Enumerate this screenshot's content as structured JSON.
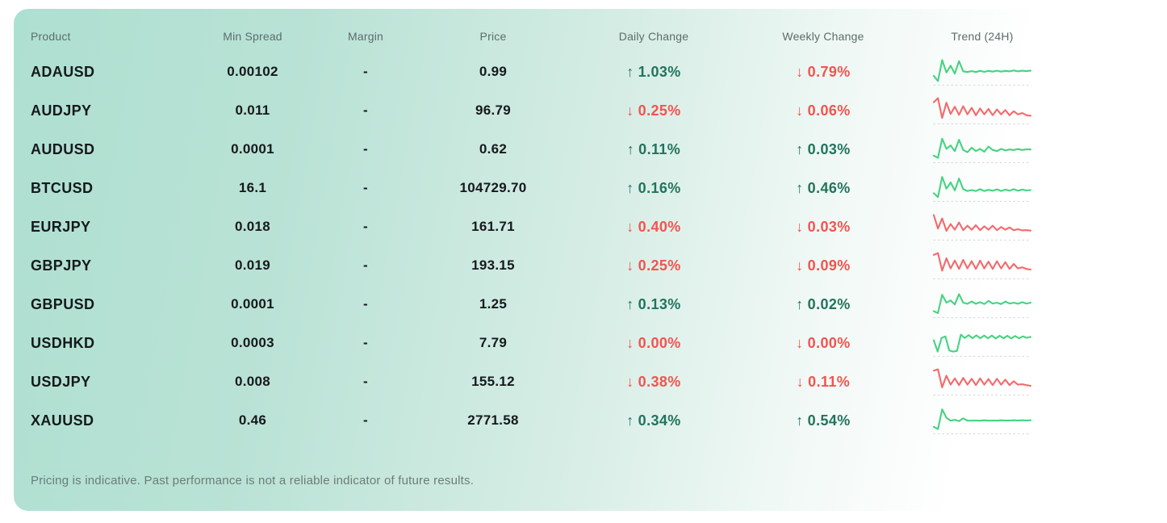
{
  "table": {
    "headers": {
      "product": "Product",
      "min_spread": "Min Spread",
      "margin": "Margin",
      "price": "Price",
      "daily_change": "Daily Change",
      "weekly_change": "Weekly Change",
      "trend": "Trend (24H)"
    },
    "rows": [
      {
        "product": "ADAUSD",
        "min_spread": "0.00102",
        "margin": "-",
        "price": "0.99",
        "daily_change": {
          "direction": "up",
          "value": "1.03%"
        },
        "weekly_change": {
          "direction": "down",
          "value": "0.79%"
        },
        "trend": {
          "color": "green",
          "points": [
            0.25,
            0.02,
            0.95,
            0.4,
            0.7,
            0.35,
            0.9,
            0.45,
            0.42,
            0.46,
            0.42,
            0.47,
            0.43,
            0.47,
            0.44,
            0.48,
            0.44,
            0.47,
            0.45,
            0.49,
            0.45,
            0.48,
            0.46,
            0.48
          ]
        }
      },
      {
        "product": "AUDJPY",
        "min_spread": "0.011",
        "margin": "-",
        "price": "96.79",
        "daily_change": {
          "direction": "down",
          "value": "0.25%"
        },
        "weekly_change": {
          "direction": "down",
          "value": "0.06%"
        },
        "trend": {
          "color": "red",
          "points": [
            0.8,
            0.98,
            0.1,
            0.78,
            0.28,
            0.6,
            0.24,
            0.62,
            0.26,
            0.55,
            0.22,
            0.52,
            0.26,
            0.5,
            0.22,
            0.48,
            0.26,
            0.45,
            0.22,
            0.4,
            0.26,
            0.32,
            0.22,
            0.2
          ]
        }
      },
      {
        "product": "AUDUSD",
        "min_spread": "0.0001",
        "margin": "-",
        "price": "0.62",
        "daily_change": {
          "direction": "up",
          "value": "0.11%"
        },
        "weekly_change": {
          "direction": "up",
          "value": "0.03%"
        },
        "trend": {
          "color": "green",
          "points": [
            0.15,
            0.05,
            0.9,
            0.45,
            0.6,
            0.35,
            0.85,
            0.4,
            0.3,
            0.5,
            0.35,
            0.45,
            0.32,
            0.55,
            0.4,
            0.35,
            0.45,
            0.38,
            0.42,
            0.4,
            0.44,
            0.4,
            0.43,
            0.42
          ]
        }
      },
      {
        "product": "BTCUSD",
        "min_spread": "16.1",
        "margin": "-",
        "price": "104729.70",
        "daily_change": {
          "direction": "up",
          "value": "0.16%"
        },
        "weekly_change": {
          "direction": "up",
          "value": "0.46%"
        },
        "trend": {
          "color": "green",
          "points": [
            0.2,
            0.03,
            0.92,
            0.4,
            0.68,
            0.32,
            0.85,
            0.38,
            0.3,
            0.34,
            0.3,
            0.38,
            0.3,
            0.35,
            0.31,
            0.37,
            0.3,
            0.36,
            0.31,
            0.38,
            0.31,
            0.36,
            0.32,
            0.34
          ]
        }
      },
      {
        "product": "EURJPY",
        "min_spread": "0.018",
        "margin": "-",
        "price": "161.71",
        "daily_change": {
          "direction": "down",
          "value": "0.40%"
        },
        "weekly_change": {
          "direction": "down",
          "value": "0.03%"
        },
        "trend": {
          "color": "red",
          "points": [
            0.95,
            0.35,
            0.8,
            0.25,
            0.55,
            0.3,
            0.62,
            0.28,
            0.48,
            0.3,
            0.5,
            0.28,
            0.45,
            0.3,
            0.48,
            0.28,
            0.42,
            0.3,
            0.4,
            0.28,
            0.32,
            0.27,
            0.28,
            0.26
          ]
        }
      },
      {
        "product": "GBPJPY",
        "min_spread": "0.019",
        "margin": "-",
        "price": "193.15",
        "daily_change": {
          "direction": "down",
          "value": "0.25%"
        },
        "weekly_change": {
          "direction": "down",
          "value": "0.09%"
        },
        "trend": {
          "color": "red",
          "points": [
            0.9,
            0.98,
            0.2,
            0.75,
            0.3,
            0.65,
            0.28,
            0.68,
            0.3,
            0.62,
            0.28,
            0.65,
            0.3,
            0.6,
            0.28,
            0.62,
            0.3,
            0.58,
            0.28,
            0.5,
            0.3,
            0.35,
            0.28,
            0.25
          ]
        }
      },
      {
        "product": "GBPUSD",
        "min_spread": "0.0001",
        "margin": "-",
        "price": "1.25",
        "daily_change": {
          "direction": "up",
          "value": "0.13%"
        },
        "weekly_change": {
          "direction": "up",
          "value": "0.02%"
        },
        "trend": {
          "color": "green",
          "points": [
            0.12,
            0.04,
            0.85,
            0.5,
            0.6,
            0.42,
            0.88,
            0.5,
            0.45,
            0.55,
            0.45,
            0.52,
            0.44,
            0.58,
            0.46,
            0.5,
            0.44,
            0.55,
            0.46,
            0.5,
            0.45,
            0.52,
            0.46,
            0.5
          ]
        }
      },
      {
        "product": "USDHKD",
        "min_spread": "0.0003",
        "margin": "-",
        "price": "7.79",
        "daily_change": {
          "direction": "down",
          "value": "0.00%"
        },
        "weekly_change": {
          "direction": "down",
          "value": "0.00%"
        },
        "trend": {
          "color": "green",
          "points": [
            0.55,
            0.05,
            0.65,
            0.72,
            0.1,
            0.05,
            0.08,
            0.8,
            0.65,
            0.78,
            0.64,
            0.77,
            0.64,
            0.76,
            0.64,
            0.76,
            0.63,
            0.75,
            0.64,
            0.75,
            0.63,
            0.74,
            0.64,
            0.72,
            0.66,
            0.7
          ]
        }
      },
      {
        "product": "USDJPY",
        "min_spread": "0.008",
        "margin": "-",
        "price": "155.12",
        "daily_change": {
          "direction": "down",
          "value": "0.38%"
        },
        "weekly_change": {
          "direction": "down",
          "value": "0.11%"
        },
        "trend": {
          "color": "red",
          "points": [
            0.92,
            0.98,
            0.18,
            0.7,
            0.3,
            0.58,
            0.28,
            0.6,
            0.3,
            0.56,
            0.28,
            0.58,
            0.3,
            0.55,
            0.28,
            0.56,
            0.3,
            0.52,
            0.28,
            0.45,
            0.3,
            0.32,
            0.28,
            0.25
          ]
        }
      },
      {
        "product": "XAUUSD",
        "min_spread": "0.46",
        "margin": "-",
        "price": "2771.58",
        "daily_change": {
          "direction": "up",
          "value": "0.34%"
        },
        "weekly_change": {
          "direction": "up",
          "value": "0.54%"
        },
        "trend": {
          "color": "green",
          "points": [
            0.15,
            0.05,
            0.92,
            0.55,
            0.42,
            0.46,
            0.4,
            0.52,
            0.42,
            0.42,
            0.43,
            0.42,
            0.44,
            0.42,
            0.43,
            0.42,
            0.44,
            0.43,
            0.43,
            0.44,
            0.43,
            0.44,
            0.43,
            0.44
          ]
        }
      }
    ]
  },
  "footer": {
    "disclaimer": "Pricing is indicative. Past performance is not a reliable indicator of future results."
  },
  "icons": {
    "up_arrow": "↑",
    "down_arrow": "↓"
  },
  "colors": {
    "positive_text": "#21745c",
    "negative_text": "#f2544f",
    "spark_green": "#45d381",
    "spark_red": "#f5696b",
    "spark_baseline": "#dcdcdc",
    "card_gradient_start": "#aee0d1",
    "card_gradient_end": "#ffffff"
  }
}
